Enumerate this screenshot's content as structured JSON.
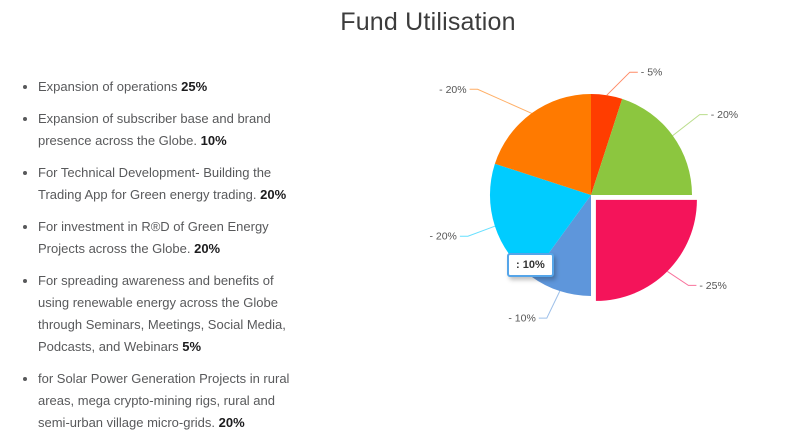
{
  "page": {
    "title": "Fund Utilisation"
  },
  "fund_list": {
    "items": [
      {
        "text": "Expansion of operations",
        "pct": "25%"
      },
      {
        "text": "Expansion of subscriber base and brand presence across the Globe.",
        "pct": "10%"
      },
      {
        "text": "For Technical Development- Building the Trading App for Green energy trading.",
        "pct": "20%"
      },
      {
        "text": "For investment in R®D of Green Energy Projects across the Globe.",
        "pct": "20%"
      },
      {
        "text": "For spreading awareness and benefits of using renewable energy across the Globe through Seminars, Meetings, Social Media, Podcasts, and Webinars",
        "pct": "5%"
      },
      {
        "text": "for Solar Power Generation Projects in rural areas, mega crypto-mining rigs, rural and semi-urban village micro-grids.",
        "pct": "20%"
      }
    ]
  },
  "chart_data": {
    "type": "pie",
    "title": "Fund Utilisation",
    "start_angle_deg": 0,
    "direction": "clockwise-from-top",
    "slices": [
      {
        "label": "- 5%",
        "value": 5,
        "color": "#FF3D00",
        "exploded": false
      },
      {
        "label": "- 20%",
        "value": 20,
        "color": "#8CC63F",
        "exploded": false
      },
      {
        "label": "- 25%",
        "value": 25,
        "color": "#F4145A",
        "exploded": true
      },
      {
        "label": "- 10%",
        "value": 10,
        "color": "#5E96DB",
        "exploded": false
      },
      {
        "label": "- 20%",
        "value": 20,
        "color": "#00CCFF",
        "exploded": false
      },
      {
        "label": "- 20%",
        "value": 20,
        "color": "#FF7A00",
        "exploded": false
      }
    ],
    "legend": "none",
    "tooltip": {
      "text": ": 10%"
    }
  }
}
